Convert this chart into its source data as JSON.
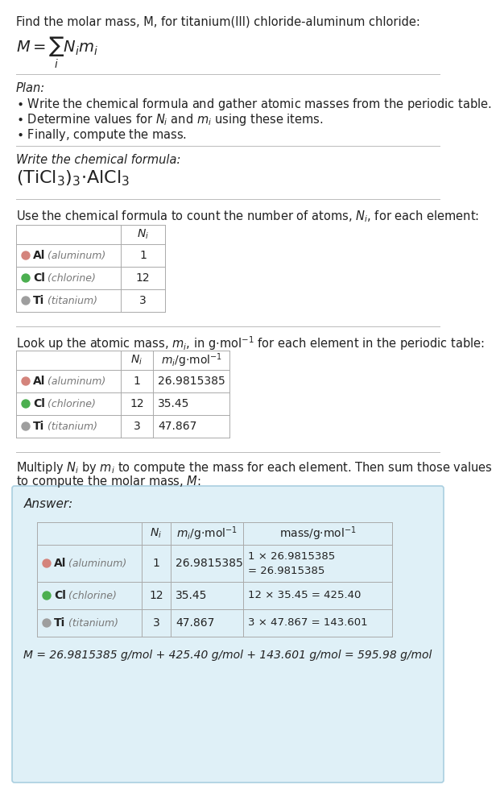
{
  "title_text": "Find the molar mass, M, for titanium(III) chloride-aluminum chloride:",
  "bg_color": "#ffffff",
  "section_line_color": "#cccccc",
  "plan_header": "Plan:",
  "plan_bullets": [
    "• Write the chemical formula and gather atomic masses from the periodic table.",
    "• Determine values for N_i and m_i using these items.",
    "• Finally, compute the mass."
  ],
  "formula_section_header": "Write the chemical formula:",
  "count_section_header": "Use the chemical formula to count the number of atoms, N_i, for each element:",
  "lookup_section_header": "Look up the atomic mass, m_i, in g·mol⁻¹ for each element in the periodic table:",
  "compute_section_header_line1": "Multiply N_i by m_i to compute the mass for each element. Then sum those values",
  "compute_section_header_line2": "to compute the molar mass, M:",
  "elements": [
    {
      "symbol": "Al",
      "name": "aluminum",
      "color": "#d4847c",
      "Ni": "1",
      "mi": "26.9815385",
      "mass_line1": "1 × 26.9815385",
      "mass_line2": "= 26.9815385"
    },
    {
      "symbol": "Cl",
      "name": "chlorine",
      "color": "#4caf50",
      "Ni": "12",
      "mi": "35.45",
      "mass_line1": "12 × 35.45 = 425.40",
      "mass_line2": ""
    },
    {
      "symbol": "Ti",
      "name": "titanium",
      "color": "#9e9e9e",
      "Ni": "3",
      "mi": "47.867",
      "mass_line1": "3 × 47.867 = 143.601",
      "mass_line2": ""
    }
  ],
  "answer_bg": "#dff0f7",
  "answer_border": "#aacfe0",
  "final_eq": "M = 26.9815385 g/mol + 425.40 g/mol + 143.601 g/mol = 595.98 g/mol",
  "table_border_color": "#aaaaaa",
  "text_color": "#222222",
  "gray_text_color": "#777777",
  "line_color": "#bbbbbb"
}
